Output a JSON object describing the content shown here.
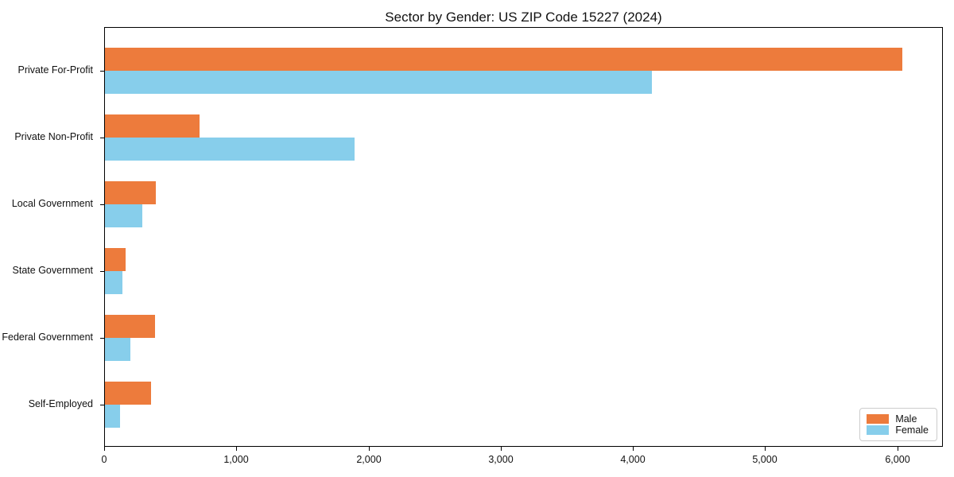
{
  "chart_data": {
    "type": "bar",
    "orientation": "horizontal",
    "title": "Sector by Gender: US ZIP Code 15227 (2024)",
    "categories": [
      "Private For-Profit",
      "Private Non-Profit",
      "Local Government",
      "State Government",
      "Federal Government",
      "Self-Employed"
    ],
    "series": [
      {
        "name": "Male",
        "color": "#ED7B3C",
        "values": [
          6030,
          715,
          385,
          155,
          380,
          350
        ]
      },
      {
        "name": "Female",
        "color": "#87CEEB",
        "values": [
          4135,
          1890,
          285,
          130,
          195,
          115
        ]
      }
    ],
    "xlabel": "",
    "ylabel": "",
    "xlim": [
      0,
      6344
    ],
    "x_ticks": [
      0,
      1000,
      2000,
      3000,
      4000,
      5000,
      6000
    ],
    "x_tick_labels": [
      "0",
      "1,000",
      "2,000",
      "3,000",
      "4,000",
      "5,000",
      "6,000"
    ],
    "grid": false,
    "legend_position": "lower right"
  }
}
